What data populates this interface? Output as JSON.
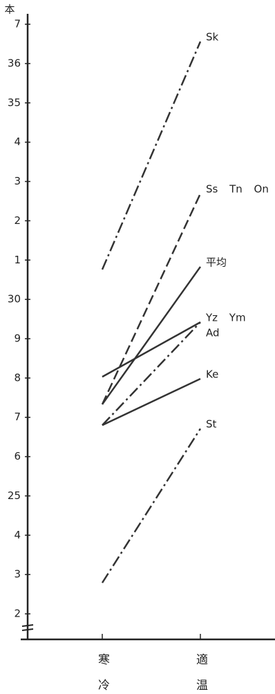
{
  "chart_data": {
    "type": "line",
    "ylabel": "本",
    "categories": [
      "寒冷",
      "適温"
    ],
    "ylim": [
      21.35,
      37.23
    ],
    "yticks": [
      {
        "value": 37,
        "label": "7"
      },
      36,
      {
        "value": 35,
        "label": "35"
      },
      {
        "value": 34,
        "label": "4"
      },
      {
        "value": 33,
        "label": "3"
      },
      {
        "value": 32,
        "label": "2"
      },
      {
        "value": 31,
        "label": "1"
      },
      30,
      {
        "value": 29,
        "label": "9"
      },
      {
        "value": 28,
        "label": "8"
      },
      {
        "value": 27,
        "label": "7"
      },
      {
        "value": 26,
        "label": "6"
      },
      25,
      {
        "value": 24,
        "label": "4"
      },
      {
        "value": 23,
        "label": "3"
      },
      {
        "value": 22,
        "label": "2"
      }
    ],
    "series": [
      {
        "name": "Sk",
        "color": "#333333",
        "dash": "dashdot",
        "values": [
          30.76,
          36.56
        ]
      },
      {
        "name": "Ss Tn On",
        "color": "#333333",
        "dash": "dashed",
        "values": [
          27.33,
          32.69
        ]
      },
      {
        "name": "平均",
        "color": "#333333",
        "dash": "solid",
        "values": [
          27.33,
          30.83
        ]
      },
      {
        "name": "Yz Ym",
        "color": "#333333",
        "dash": "solid",
        "values": [
          28.03,
          29.42
        ]
      },
      {
        "name": "Ad",
        "color": "#333333",
        "dash": "dashdot",
        "values": [
          26.8,
          29.42
        ]
      },
      {
        "name": "Ke",
        "color": "#333333",
        "dash": "solid",
        "values": [
          26.8,
          27.98
        ]
      },
      {
        "name": "St",
        "color": "#333333",
        "dash": "dashdot",
        "values": [
          22.79,
          26.71
        ]
      }
    ]
  }
}
